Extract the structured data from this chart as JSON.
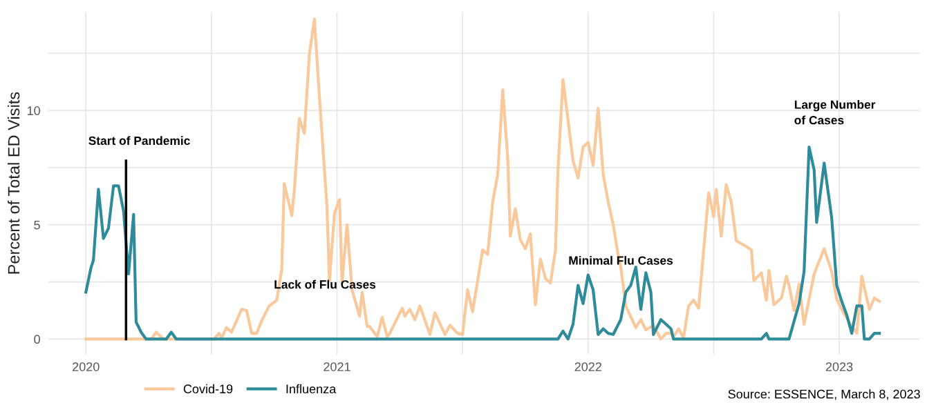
{
  "chart_data": {
    "type": "line",
    "ylabel": "Percent of Total ED Visits",
    "xlim": [
      2019.85,
      2023.32
    ],
    "xticks": [
      2020,
      {
        "value": 2020.5,
        "label": null
      },
      2021,
      {
        "value": 2021.5,
        "label": null
      },
      2022,
      {
        "value": 2022.5,
        "label": null
      },
      2023
    ],
    "ylim": [
      -0.67,
      14.3
    ],
    "yticks": [
      0,
      {
        "value": 2.5,
        "label": null
      },
      5,
      {
        "value": 7.5,
        "label": null
      },
      10,
      {
        "value": 12.5,
        "label": null
      }
    ],
    "grid": true,
    "legend": "bottom left",
    "series": [
      {
        "name": "Covid-19",
        "color": "#f9c89b",
        "x": [
          2020.0,
          2020.26,
          2020.28,
          2020.31,
          2020.51,
          2020.53,
          2020.54,
          2020.56,
          2020.58,
          2020.62,
          2020.64,
          2020.66,
          2020.68,
          2020.7,
          2020.73,
          2020.76,
          2020.78,
          2020.79,
          2020.82,
          2020.83,
          2020.85,
          2020.87,
          2020.89,
          2020.91,
          2020.93,
          2020.96,
          2020.97,
          2020.99,
          2021.01,
          2021.02,
          2021.04,
          2021.06,
          2021.09,
          2021.1,
          2021.12,
          2021.13,
          2021.16,
          2021.18,
          2021.2,
          2021.21,
          2021.26,
          2021.27,
          2021.29,
          2021.31,
          2021.33,
          2021.37,
          2021.39,
          2021.43,
          2021.45,
          2021.48,
          2021.5,
          2021.52,
          2021.54,
          2021.58,
          2021.6,
          2021.62,
          2021.64,
          2021.66,
          2021.68,
          2021.69,
          2021.71,
          2021.73,
          2021.75,
          2021.77,
          2021.79,
          2021.81,
          2021.83,
          2021.85,
          2021.87,
          2021.88,
          2021.9,
          2021.94,
          2021.96,
          2021.98,
          2022.0,
          2022.02,
          2022.04,
          2022.06,
          2022.08,
          2022.1,
          2022.12,
          2022.13,
          2022.15,
          2022.19,
          2022.21,
          2022.23,
          2022.26,
          2022.29,
          2022.31,
          2022.33,
          2022.34,
          2022.36,
          2022.38,
          2022.4,
          2022.42,
          2022.44,
          2022.48,
          2022.5,
          2022.51,
          2022.53,
          2022.55,
          2022.57,
          2022.59,
          2022.63,
          2022.65,
          2022.66,
          2022.69,
          2022.71,
          2022.72,
          2022.74,
          2022.77,
          2022.79,
          2022.8,
          2022.82,
          2022.84,
          2022.86,
          2022.9,
          2022.94,
          2022.97,
          2022.99,
          2023.01,
          2023.05,
          2023.07,
          2023.09,
          2023.1,
          2023.12,
          2023.14,
          2023.16
        ],
        "values": [
          0,
          0,
          0.3,
          0,
          0,
          0.25,
          0.05,
          0.5,
          0.3,
          1.3,
          1.25,
          0.25,
          0.25,
          0.8,
          1.45,
          1.7,
          3.05,
          6.8,
          5.4,
          6.5,
          9.65,
          9.0,
          12.45,
          14.0,
          10.6,
          5.8,
          2.55,
          5.5,
          6.1,
          2.45,
          5.0,
          2.15,
          1.0,
          2.05,
          0.55,
          0.55,
          0.1,
          0.95,
          0.1,
          0.25,
          1.35,
          1.0,
          1.3,
          0.85,
          1.45,
          0.2,
          1.15,
          0.2,
          0.6,
          0.25,
          0.2,
          2.15,
          1.2,
          3.9,
          3.7,
          6.0,
          7.2,
          10.9,
          7.9,
          4.5,
          5.7,
          4.35,
          3.95,
          4.6,
          1.5,
          3.5,
          2.65,
          2.45,
          3.9,
          7.4,
          11.35,
          7.8,
          7.05,
          8.4,
          8.6,
          7.6,
          10.1,
          7.2,
          6.0,
          5.0,
          3.65,
          3.15,
          1.45,
          0.5,
          0.85,
          0.4,
          0.6,
          0,
          0.25,
          0.25,
          0.1,
          0.45,
          0.05,
          1.45,
          1.7,
          1.35,
          6.4,
          5.35,
          6.55,
          4.5,
          6.75,
          6.0,
          4.3,
          4.05,
          3.9,
          2.55,
          2.9,
          1.7,
          3.0,
          1.5,
          1.8,
          2.75,
          2.35,
          1.25,
          2.4,
          0.65,
          2.85,
          3.95,
          2.95,
          1.75,
          1.3,
          0.55,
          0.25,
          2.75,
          2.25,
          1.3,
          1.8,
          1.65
        ]
      },
      {
        "name": "Influenza",
        "color": "#2e8b9a",
        "x": [
          2020.0,
          2020.02,
          2020.03,
          2020.05,
          2020.07,
          2020.09,
          2020.11,
          2020.13,
          2020.15,
          2020.17,
          2020.19,
          2020.2,
          2020.22,
          2020.24,
          2020.32,
          2020.34,
          2020.36,
          2021.88,
          2021.9,
          2021.92,
          2021.94,
          2021.96,
          2021.98,
          2022.0,
          2022.02,
          2022.04,
          2022.06,
          2022.08,
          2022.1,
          2022.13,
          2022.15,
          2022.17,
          2022.19,
          2022.21,
          2022.23,
          2022.25,
          2022.26,
          2022.29,
          2022.3,
          2022.33,
          2022.34,
          2022.69,
          2022.71,
          2022.72,
          2022.8,
          2022.84,
          2022.86,
          2022.88,
          2022.9,
          2022.91,
          2022.94,
          2022.95,
          2022.97,
          2022.99,
          2023.01,
          2023.03,
          2023.05,
          2023.07,
          2023.09,
          2023.1,
          2023.12,
          2023.14,
          2023.16
        ],
        "values": [
          2.05,
          3.1,
          3.45,
          6.55,
          4.4,
          4.85,
          6.7,
          6.7,
          5.6,
          2.85,
          5.45,
          0.75,
          0.3,
          0,
          0,
          0.3,
          0,
          0,
          0.35,
          0,
          0.65,
          2.35,
          1.55,
          2.8,
          2.15,
          0.2,
          0.45,
          0.25,
          0.2,
          0.85,
          2.05,
          2.35,
          3.15,
          1.3,
          2.9,
          2.05,
          0.2,
          0.85,
          0.75,
          0.45,
          0,
          0,
          0.25,
          0,
          0,
          1.55,
          2.95,
          8.4,
          7.4,
          5.1,
          7.7,
          6.9,
          5.3,
          2.35,
          1.65,
          1.05,
          0.25,
          1.45,
          1.45,
          0,
          0,
          0.25,
          0.25
        ]
      },
      {
        "color": "#000000",
        "x": [
          2020.16,
          2020.16
        ],
        "values": [
          0,
          7.8
        ]
      }
    ],
    "annotations": [
      "Start of Pandemic",
      "Lack of Flu Cases",
      "Minimal Flu Cases",
      "Large Number\nof Cases",
      "Source: ESSENCE, March 8, 2023"
    ]
  }
}
